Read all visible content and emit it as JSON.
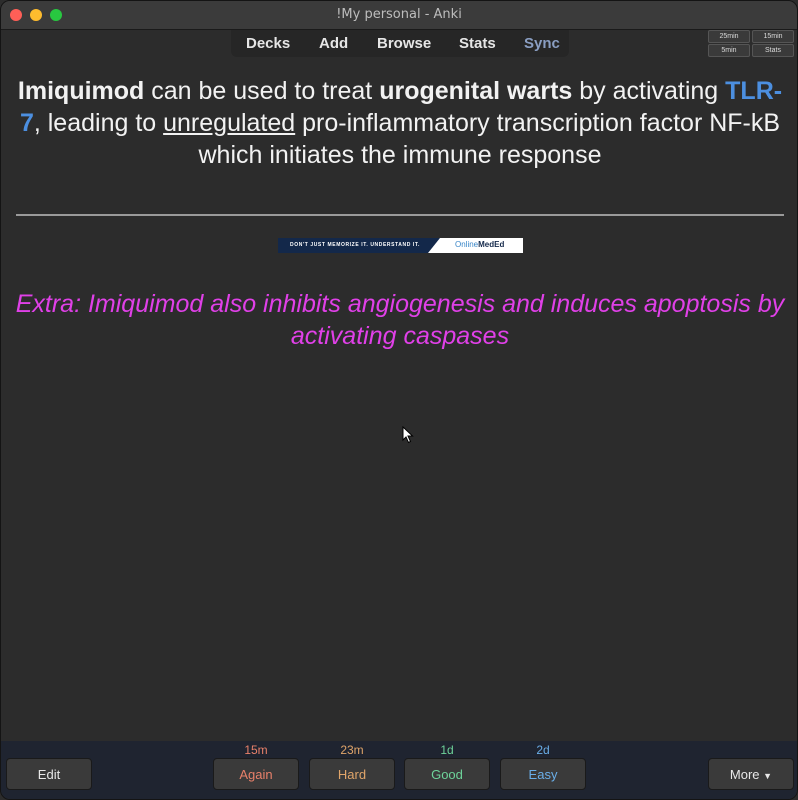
{
  "window": {
    "title": "!My personal - Anki"
  },
  "nav": {
    "decks": "Decks",
    "add": "Add",
    "browse": "Browse",
    "stats": "Stats",
    "sync": "Sync"
  },
  "timers": {
    "t1": "25min",
    "t2": "15min",
    "t3": "5min",
    "t4": "Stats"
  },
  "card": {
    "drug": "Imiquimod",
    "q1": " can be used to treat ",
    "condition": "urogenital warts",
    "q2": " by activating ",
    "receptor": "TLR-7",
    "q3": ", leading to ",
    "key_word": "unregulated",
    "q4": " pro-inflammatory transcription factor NF-kB which initiates the immune response",
    "banner_tagline": "DON'T JUST MEMORIZE IT. UNDERSTAND IT.",
    "banner_brand_online": "Online",
    "banner_brand_meded": "MedEd",
    "extra": "Extra: Imiquimod also inhibits angiogenesis and induces apoptosis by activating caspases"
  },
  "answer_buttons": {
    "edit": "Edit",
    "again": {
      "label": "Again",
      "interval": "15m",
      "color": "#e8806a"
    },
    "hard": {
      "label": "Hard",
      "interval": "23m",
      "color": "#e0a56a"
    },
    "good": {
      "label": "Good",
      "interval": "1d",
      "color": "#6ed39a"
    },
    "easy": {
      "label": "Easy",
      "interval": "2d",
      "color": "#6aaee8"
    },
    "more": "More"
  },
  "colors": {
    "accent_blue": "#4c8fe0",
    "extra_magenta": "#e040e8"
  }
}
